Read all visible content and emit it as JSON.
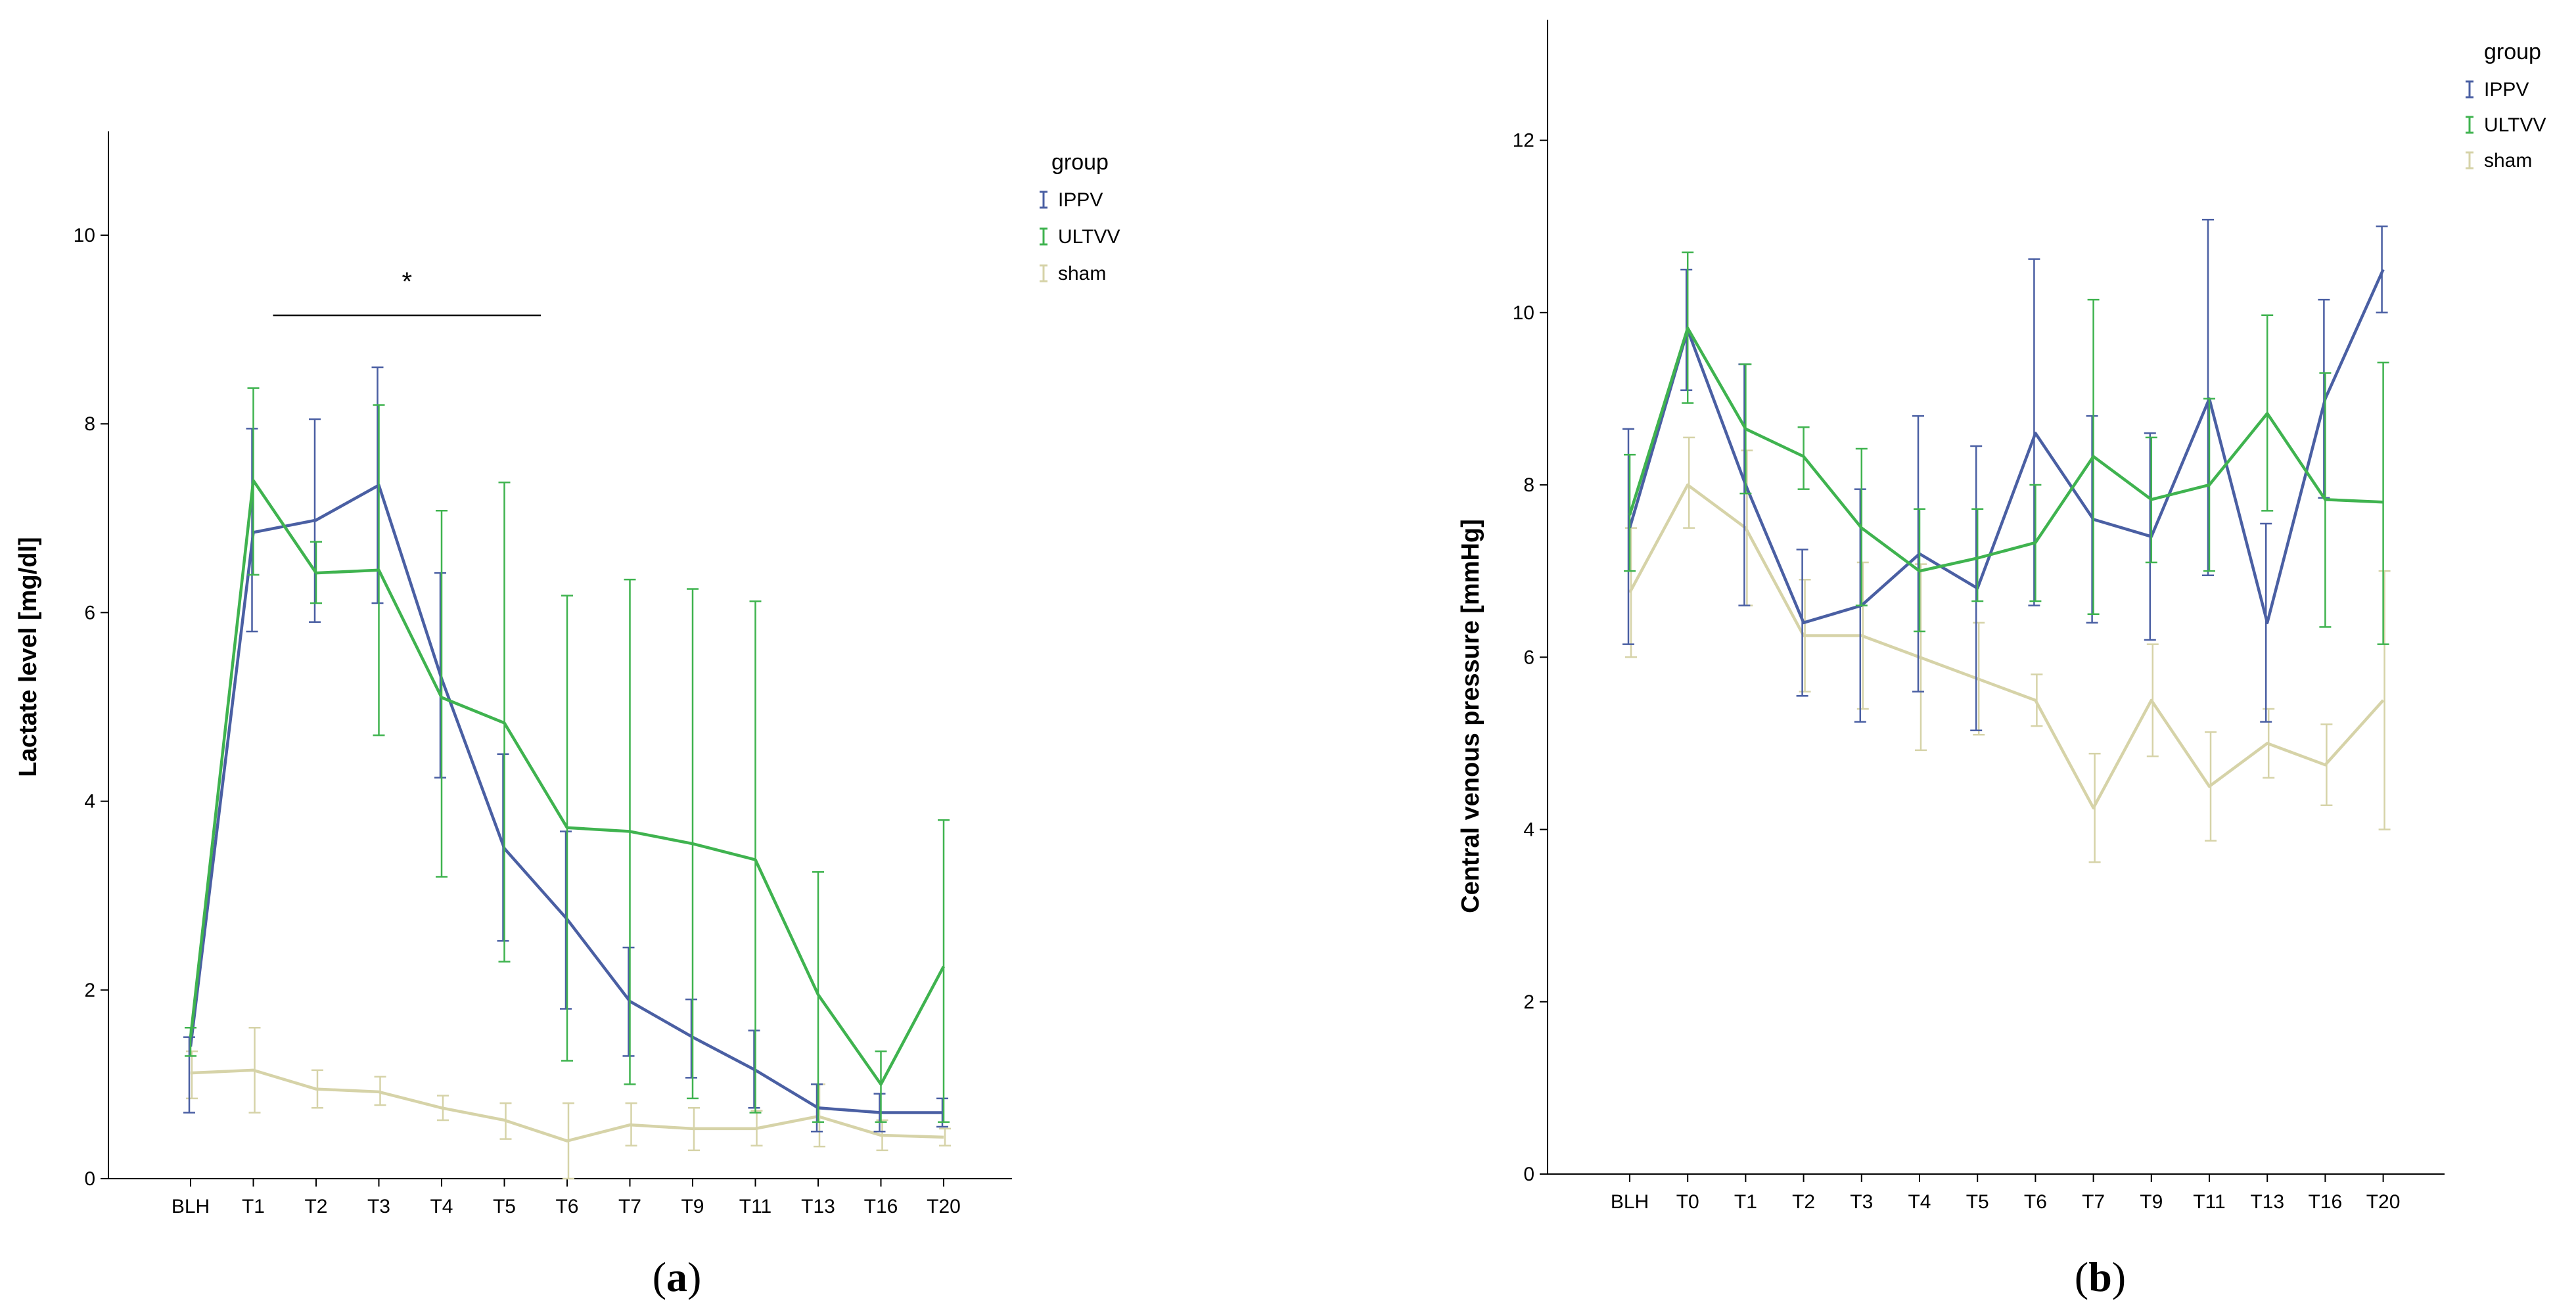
{
  "chart_data": [
    {
      "type": "line",
      "panel_label": "a",
      "ylabel": "Lactate level [mg/dl]",
      "xlabel": "",
      "categories": [
        "BLH",
        "T1",
        "T2",
        "T3",
        "T4",
        "T5",
        "T6",
        "T7",
        "T9",
        "T11",
        "T13",
        "T16",
        "T20"
      ],
      "yticks": [
        0,
        2,
        4,
        6,
        8,
        10
      ],
      "ylim": [
        0,
        11.1
      ],
      "grid": false,
      "legend": {
        "title": "group",
        "position": "top-right"
      },
      "annotation": {
        "text": "*",
        "from_category": "T1",
        "to_category": "T6",
        "y": 9.15
      },
      "series": [
        {
          "name": "IPPV",
          "color": "#4a5fa3",
          "values": [
            1.4,
            6.85,
            6.98,
            7.35,
            5.3,
            3.5,
            2.75,
            1.88,
            1.5,
            1.15,
            0.75,
            0.7,
            0.7
          ],
          "lower": [
            0.7,
            5.8,
            5.9,
            6.1,
            4.25,
            2.52,
            1.8,
            1.3,
            1.07,
            0.75,
            0.5,
            0.5,
            0.55
          ],
          "upper": [
            1.5,
            7.95,
            8.05,
            8.6,
            6.42,
            4.5,
            3.68,
            2.45,
            1.9,
            1.57,
            1.0,
            0.9,
            0.85
          ]
        },
        {
          "name": "ULTVV",
          "color": "#3fb34f",
          "values": [
            1.5,
            7.4,
            6.42,
            6.45,
            5.1,
            4.83,
            3.72,
            3.68,
            3.55,
            3.38,
            1.95,
            1.0,
            2.25
          ],
          "lower": [
            1.3,
            6.4,
            6.1,
            4.7,
            3.2,
            2.3,
            1.25,
            1.0,
            0.85,
            0.7,
            0.6,
            0.6,
            0.6
          ],
          "upper": [
            1.6,
            8.38,
            6.75,
            8.2,
            7.08,
            7.38,
            6.18,
            6.35,
            6.25,
            6.12,
            3.25,
            1.35,
            3.8
          ]
        },
        {
          "name": "sham",
          "color": "#d6d3a8",
          "values": [
            1.12,
            1.15,
            0.95,
            0.92,
            0.75,
            0.62,
            0.4,
            0.57,
            0.53,
            0.53,
            0.66,
            0.46,
            0.44
          ],
          "lower": [
            0.85,
            0.7,
            0.75,
            0.78,
            0.62,
            0.42,
            0.0,
            0.35,
            0.3,
            0.35,
            0.34,
            0.3,
            0.35
          ],
          "upper": [
            1.35,
            1.6,
            1.15,
            1.08,
            0.88,
            0.8,
            0.8,
            0.8,
            0.75,
            0.72,
            1.0,
            0.62,
            0.53
          ]
        }
      ]
    },
    {
      "type": "line",
      "panel_label": "b",
      "ylabel": "Central venous pressure [mmHg]",
      "xlabel": "",
      "categories": [
        "BLH",
        "T0",
        "T1",
        "T2",
        "T3",
        "T4",
        "T5",
        "T6",
        "T7",
        "T9",
        "T11",
        "T13",
        "T16",
        "T20"
      ],
      "yticks": [
        0,
        2,
        4,
        6,
        8,
        10,
        12
      ],
      "ylim": [
        0,
        13.4
      ],
      "grid": false,
      "legend": {
        "title": "group",
        "position": "top-right"
      },
      "series": [
        {
          "name": "IPPV",
          "color": "#4a5fa3",
          "values": [
            7.5,
            9.8,
            8.0,
            6.4,
            6.6,
            7.2,
            6.8,
            8.6,
            7.6,
            7.4,
            9.0,
            6.4,
            9.0,
            10.5
          ],
          "lower": [
            6.15,
            9.1,
            6.6,
            5.55,
            5.25,
            5.6,
            5.15,
            6.6,
            6.4,
            6.2,
            6.95,
            5.25,
            7.85,
            10.0
          ],
          "upper": [
            8.65,
            10.5,
            9.4,
            7.25,
            7.95,
            8.8,
            8.45,
            10.62,
            8.8,
            8.6,
            11.08,
            7.55,
            10.15,
            11.0
          ]
        },
        {
          "name": "ULTVV",
          "color": "#3fb34f",
          "values": [
            7.65,
            9.82,
            8.65,
            8.33,
            7.5,
            7.0,
            7.15,
            7.33,
            8.33,
            7.83,
            8.0,
            8.83,
            7.83,
            7.8
          ],
          "lower": [
            7.0,
            8.95,
            7.9,
            7.95,
            6.6,
            6.3,
            6.65,
            6.65,
            6.5,
            7.1,
            7.0,
            7.7,
            6.35,
            6.15
          ],
          "upper": [
            8.35,
            10.7,
            9.4,
            8.67,
            8.42,
            7.72,
            7.72,
            8.0,
            10.15,
            8.55,
            9.0,
            9.97,
            9.3,
            9.42
          ]
        },
        {
          "name": "sham",
          "color": "#d6d3a8",
          "values": [
            6.75,
            8.0,
            7.5,
            6.25,
            6.25,
            6.0,
            5.75,
            5.5,
            4.25,
            5.5,
            4.5,
            5.0,
            4.75,
            5.5
          ],
          "lower": [
            6.0,
            7.5,
            6.6,
            5.6,
            5.4,
            4.92,
            5.1,
            5.2,
            3.62,
            4.85,
            3.87,
            4.6,
            4.28,
            4.0
          ],
          "upper": [
            7.5,
            8.55,
            8.4,
            6.9,
            7.1,
            7.08,
            6.4,
            5.8,
            4.88,
            6.15,
            5.13,
            5.4,
            5.22,
            7.0
          ]
        }
      ]
    }
  ]
}
